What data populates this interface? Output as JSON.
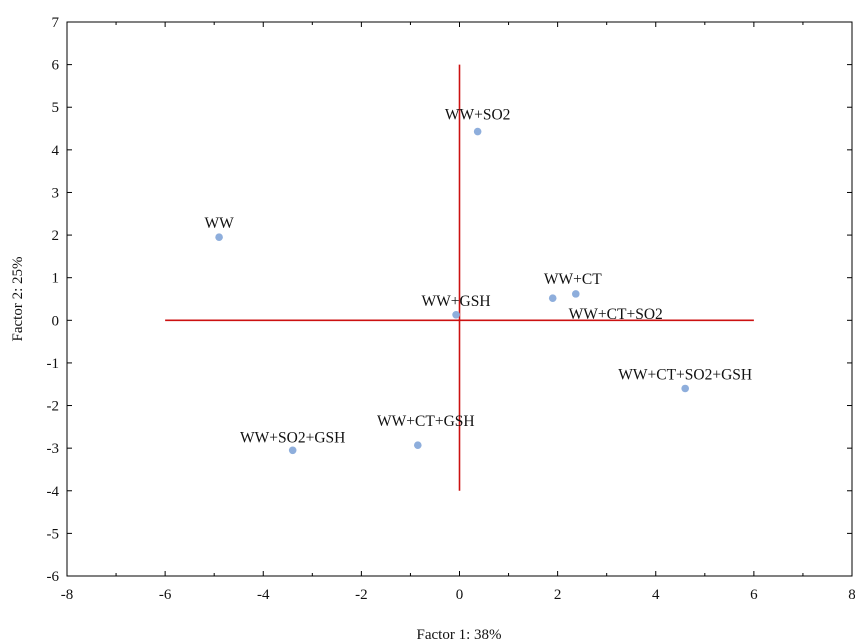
{
  "chart_data": {
    "type": "scatter",
    "title": "",
    "xlabel": "Factor 1: 38%",
    "ylabel": "Factor 2: 25%",
    "xlim": [
      -8,
      8
    ],
    "ylim": [
      -6,
      7
    ],
    "x_ticks": [
      "-8",
      "-6",
      "-4",
      "-2",
      "0",
      "2",
      "4",
      "6",
      "8"
    ],
    "y_ticks": [
      "-6",
      "-5",
      "-4",
      "-3",
      "-2",
      "-1",
      "0",
      "1",
      "2",
      "3",
      "4",
      "5",
      "6",
      "7"
    ],
    "grid": false,
    "point_color": "#8eaedc",
    "line_color": "#cc1111",
    "reference_lines": [
      {
        "orientation": "horizontal",
        "y": 0,
        "x_from": -6,
        "x_to": 6
      },
      {
        "orientation": "vertical",
        "x": 0,
        "y_from": -4,
        "y_to": 6
      }
    ],
    "points": [
      {
        "label": "WW+SO2",
        "x": 0.37,
        "y": 4.43
      },
      {
        "label": "WW",
        "x": -4.9,
        "y": 1.95
      },
      {
        "label": "WW+CT",
        "x": 2.37,
        "y": 0.62
      },
      {
        "label": "WW+GSH",
        "x": -0.07,
        "y": 0.13
      },
      {
        "label": "WW+CT+SO2",
        "x": 1.9,
        "y": 0.52
      },
      {
        "label": "WW+CT+SO2+GSH",
        "x": 4.6,
        "y": -1.6
      },
      {
        "label": "WW+CT+GSH",
        "x": -0.85,
        "y": -2.93
      },
      {
        "label": "WW+SO2+GSH",
        "x": -3.4,
        "y": -3.05
      }
    ]
  }
}
